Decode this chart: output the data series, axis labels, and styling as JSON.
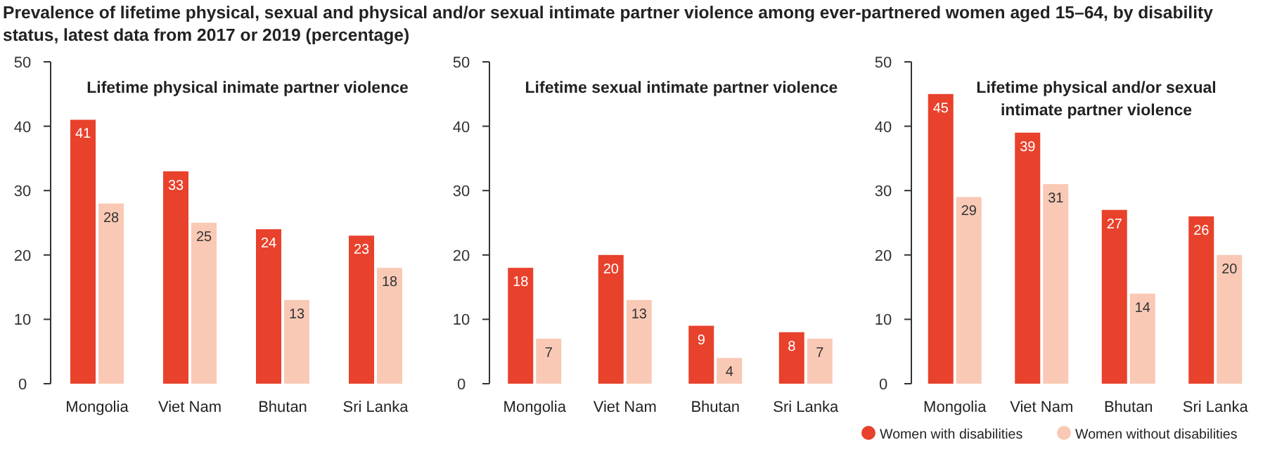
{
  "chart_data": [
    {
      "type": "bar",
      "title": "Lifetime physical inimate partner violence",
      "annotations": [
        "Prevalence of lifetime physical, sexual and physical and/or sexual intimate partner violence among ever-partnered women aged 15–64, by disability status, latest data from 2017 or 2019 (percentage)"
      ],
      "categories": [
        "Mongolia",
        "Viet Nam",
        "Bhutan",
        "Sri Lanka"
      ],
      "series": [
        {
          "color": "#e8412c",
          "values": [
            41,
            33,
            24,
            23
          ]
        },
        {
          "color": "#f9c9b5",
          "values": [
            28,
            25,
            13,
            18
          ]
        }
      ],
      "ylim": [
        0,
        50
      ],
      "yticks": [
        0,
        10,
        20,
        30,
        40,
        50
      ],
      "data_labels": true,
      "legend": false
    },
    {
      "type": "bar",
      "title": "Lifetime sexual intimate partner violence",
      "categories": [
        "Mongolia",
        "Viet Nam",
        "Bhutan",
        "Sri Lanka"
      ],
      "series": [
        {
          "color": "#e8412c",
          "values": [
            18,
            20,
            9,
            8
          ]
        },
        {
          "color": "#f9c9b5",
          "values": [
            7,
            13,
            4,
            7
          ]
        }
      ],
      "ylim": [
        0,
        50
      ],
      "yticks": [
        0,
        10,
        20,
        30,
        40,
        50
      ],
      "data_labels": true,
      "legend": false
    },
    {
      "type": "bar",
      "title": "Lifetime physical and/or sexual intimate partner violence",
      "categories": [
        "Mongolia",
        "Viet Nam",
        "Bhutan",
        "Sri Lanka"
      ],
      "series": [
        {
          "name": "Women with disabilities",
          "color": "#e8412c",
          "values": [
            45,
            39,
            27,
            26
          ]
        },
        {
          "name": "Women without disabilities",
          "color": "#f9c9b5",
          "values": [
            29,
            31,
            14,
            20
          ]
        }
      ],
      "ylim": [
        0,
        50
      ],
      "yticks": [
        0,
        10,
        20,
        30,
        40,
        50
      ],
      "data_labels": true,
      "legend": "bottom"
    }
  ]
}
